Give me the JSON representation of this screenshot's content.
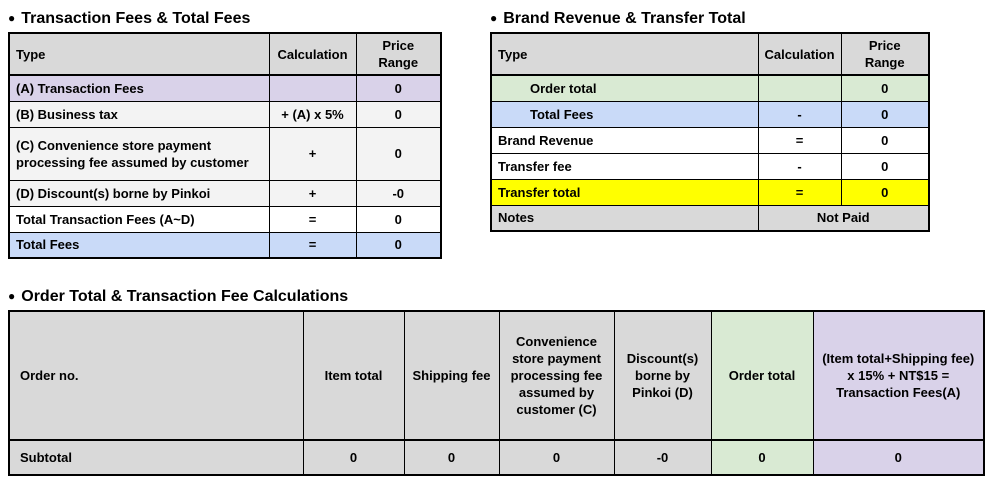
{
  "bullet": "●",
  "colors": {
    "header_gray": "#d9d9d9",
    "row_light_gray": "#f3f3f3",
    "lavender": "#d9d2e9",
    "blue": "#c9daf8",
    "green": "#d9ead3",
    "yellow": "#ffff00",
    "border": "#000000",
    "text": "#000000"
  },
  "tables": {
    "transaction_fees": {
      "title": "Transaction Fees & Total Fees",
      "headers": {
        "type": "Type",
        "calculation": "Calculation",
        "price": "Price Range"
      },
      "rows": [
        {
          "label": "(A) Transaction Fees",
          "calc": "",
          "price": "0"
        },
        {
          "label": "(B) Business tax",
          "calc": "+ (A) x 5%",
          "price": "0"
        },
        {
          "label": "(C) Convenience store payment processing fee assumed by customer",
          "calc": "+",
          "price": "0"
        },
        {
          "label": "(D) Discount(s) borne by Pinkoi",
          "calc": "+",
          "price": "-0"
        },
        {
          "label": "Total Transaction Fees (A~D)",
          "calc": "=",
          "price": "0"
        },
        {
          "label": "Total Fees",
          "calc": "=",
          "price": "0"
        }
      ]
    },
    "brand_revenue": {
      "title": "Brand Revenue & Transfer Total",
      "headers": {
        "type": "Type",
        "calculation": "Calculation",
        "price": "Price Range"
      },
      "rows": [
        {
          "label": "Order total",
          "calc": "",
          "price": "0"
        },
        {
          "label": "Total Fees",
          "calc": "-",
          "price": "0"
        },
        {
          "label": "Brand Revenue",
          "calc": "=",
          "price": "0"
        },
        {
          "label": "Transfer fee",
          "calc": "-",
          "price": "0"
        },
        {
          "label": "Transfer total",
          "calc": "=",
          "price": "0"
        }
      ],
      "notes": {
        "label": "Notes",
        "value": "Not Paid"
      }
    },
    "order_calculations": {
      "title": "Order Total & Transaction Fee Calculations",
      "headers": [
        "Order no.",
        "Item total",
        "Shipping fee",
        "Convenience store payment processing fee assumed by customer (C)",
        "Discount(s) borne by Pinkoi (D)",
        "Order total",
        "(Item total+Shipping fee) x 15% + NT$15 = Transaction Fees(A)"
      ],
      "subtotal": {
        "label": "Subtotal",
        "values": [
          "0",
          "0",
          "0",
          "-0",
          "0",
          "0"
        ]
      }
    }
  }
}
